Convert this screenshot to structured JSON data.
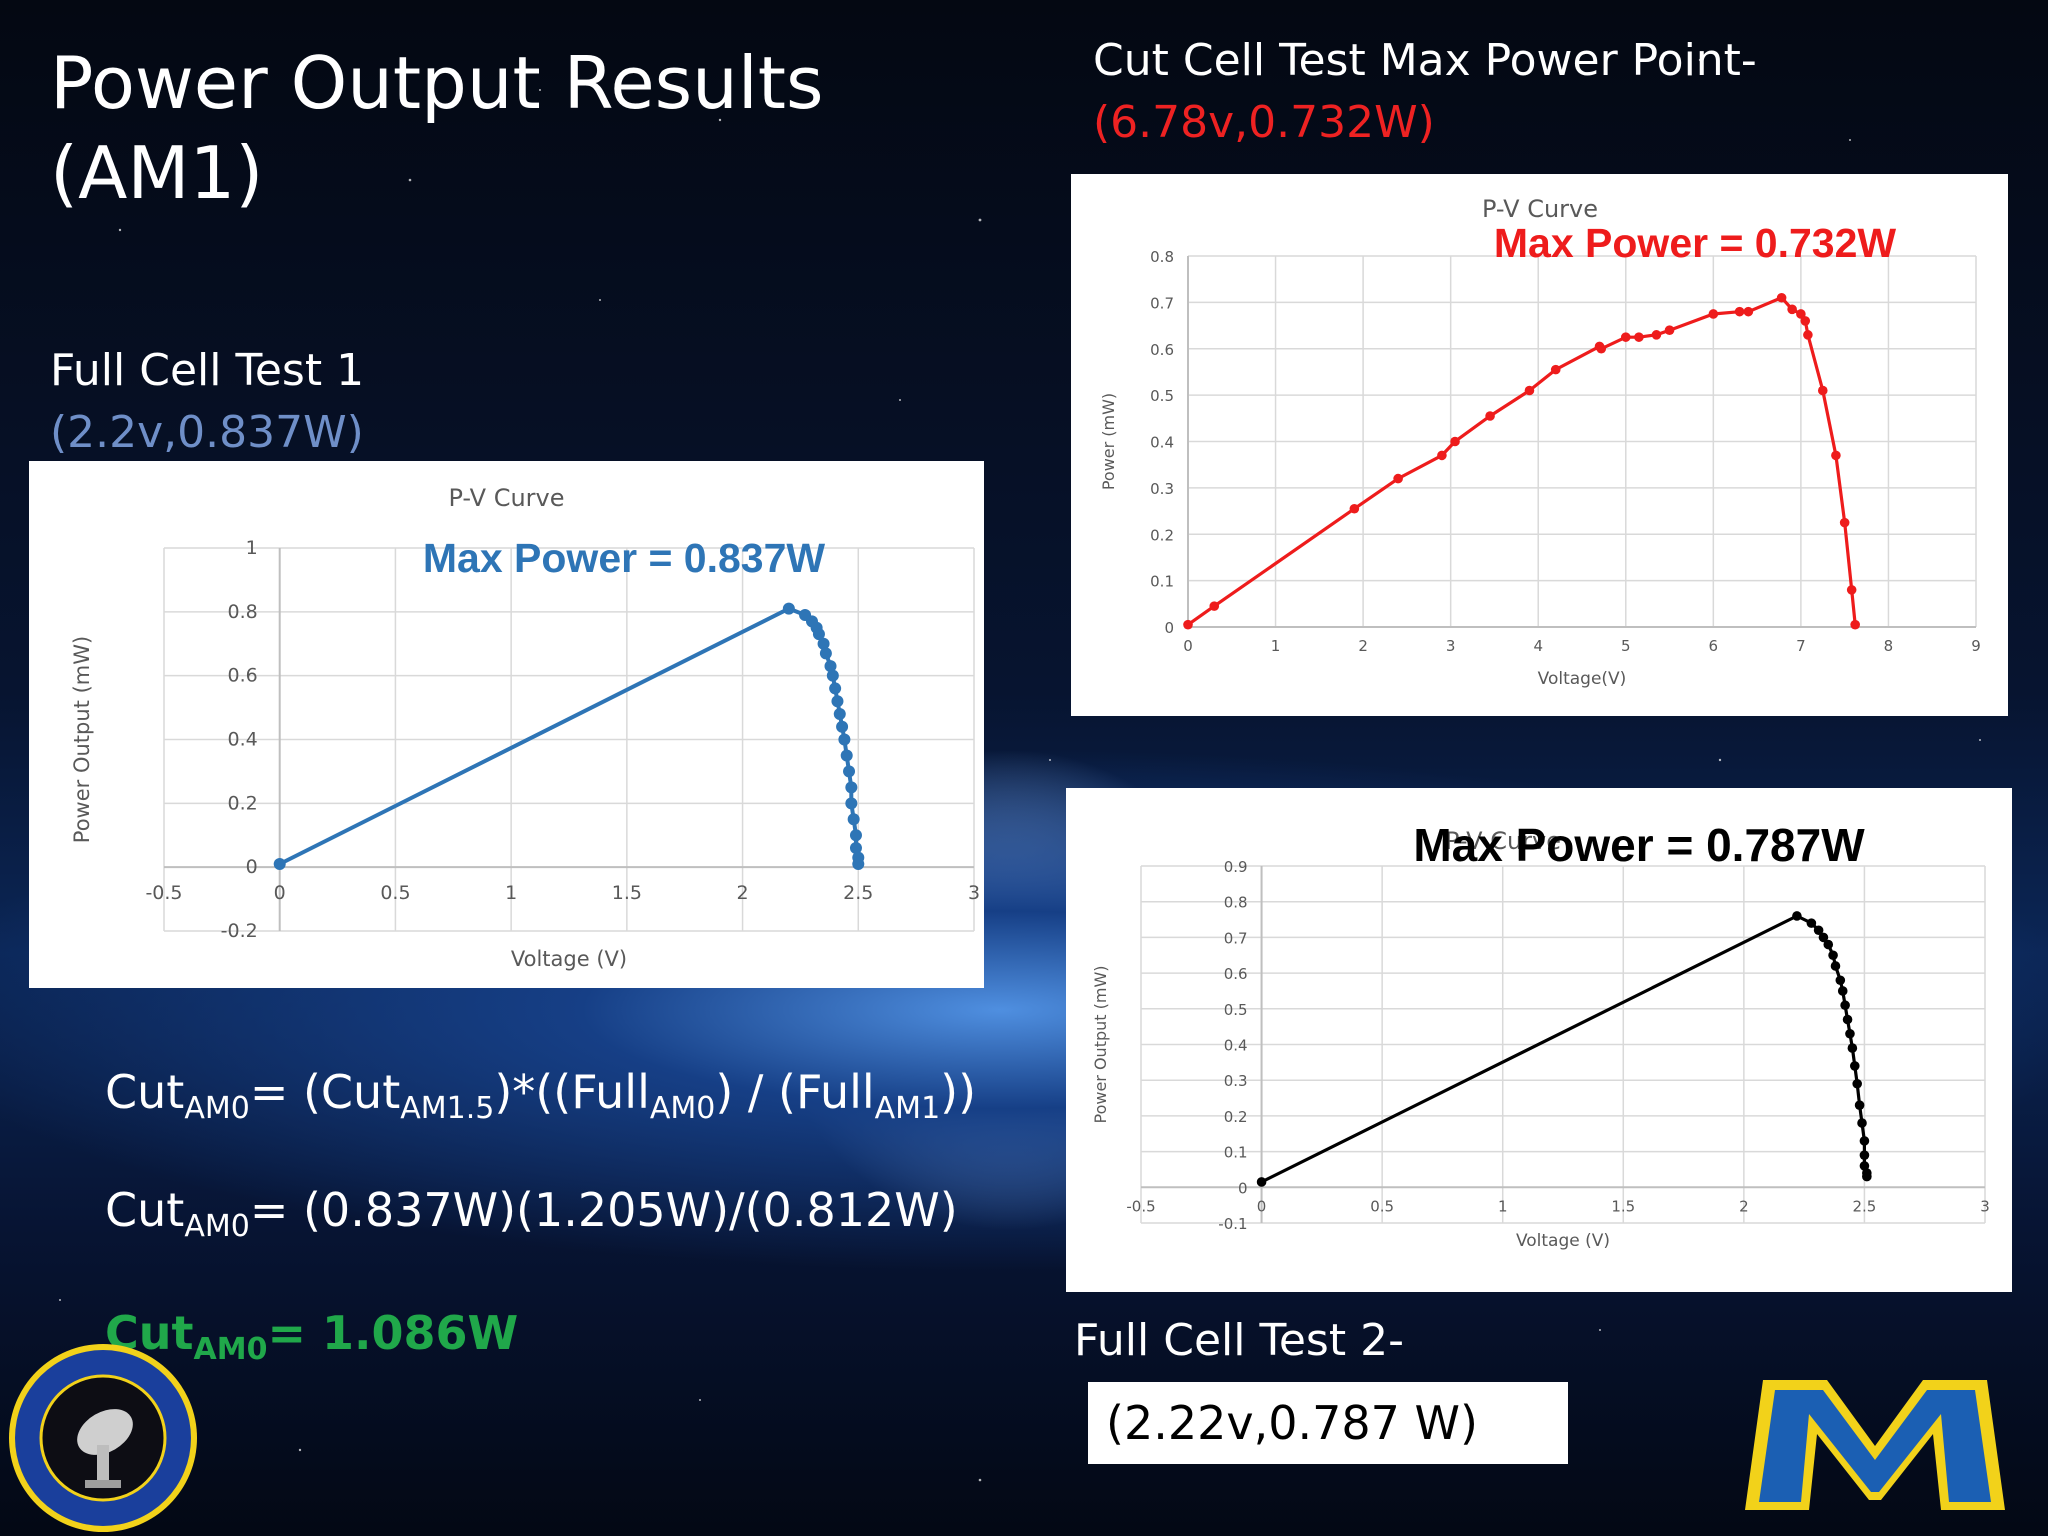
{
  "slide": {
    "title_line1": "Power Output Results",
    "title_line2": "(AM1)",
    "full1_label": "Full Cell Test 1",
    "full1_point": "(2.2v,0.837W)",
    "cut_label": "Cut Cell Test Max Power Point-",
    "cut_point": "(6.78v,0.732W)",
    "full2_label": "Full Cell Test 2-",
    "full2_point": "(2.22v,0.787 W)"
  },
  "colors": {
    "full1": "#2e75b6",
    "cut": "#ee1c1c",
    "full2": "#000000",
    "result": "#20a84a",
    "point1_text": "#6f8fc8",
    "point_cut_text": "#ee2222"
  },
  "formulas": {
    "line1": {
      "a": "Cut",
      "a_sub": "AM0",
      "b": "= (Cut",
      "b_sub": "AM1.5",
      "c": ")*((Full",
      "c_sub": "AM0",
      "d": ") / (Full",
      "d_sub": "AM1",
      "e": "))"
    },
    "line2": {
      "a": "Cut",
      "a_sub": "AM0",
      "b": "= (0.837W)(1.205W)/(0.812W)"
    },
    "line3": {
      "a": "Cut",
      "a_sub": "AM0",
      "b": "= 1.086W"
    }
  },
  "logos": {
    "left": "Space Science Center - Morehead State University seal",
    "right": "Morehead State M logo"
  },
  "chart_data": [
    {
      "type": "scatter",
      "id": "full-cell-test-1",
      "title": "P-V Curve",
      "annotation": "Max Power = 0.837W",
      "xlabel": "Voltage (V)",
      "ylabel": "Power Output  (mW)",
      "xlim": [
        -0.5,
        3
      ],
      "ylim": [
        -0.2,
        1
      ],
      "xticks": [
        "-0.5",
        "0",
        "0.5",
        "1",
        "1.5",
        "2",
        "2.5",
        "3"
      ],
      "yticks": [
        "-0.2",
        "0",
        "0.2",
        "0.4",
        "0.6",
        "0.8",
        "1"
      ],
      "grid": true,
      "series": [
        {
          "color": "#2e75b6",
          "points": [
            [
              0,
              0.01
            ],
            [
              2.2,
              0.81
            ],
            [
              2.27,
              0.79
            ],
            [
              2.3,
              0.77
            ],
            [
              2.32,
              0.75
            ],
            [
              2.33,
              0.73
            ],
            [
              2.35,
              0.7
            ],
            [
              2.36,
              0.67
            ],
            [
              2.38,
              0.63
            ],
            [
              2.39,
              0.6
            ],
            [
              2.4,
              0.56
            ],
            [
              2.41,
              0.52
            ],
            [
              2.42,
              0.48
            ],
            [
              2.43,
              0.44
            ],
            [
              2.44,
              0.4
            ],
            [
              2.45,
              0.35
            ],
            [
              2.46,
              0.3
            ],
            [
              2.47,
              0.25
            ],
            [
              2.47,
              0.2
            ],
            [
              2.48,
              0.15
            ],
            [
              2.49,
              0.1
            ],
            [
              2.49,
              0.06
            ],
            [
              2.5,
              0.03
            ],
            [
              2.5,
              0.01
            ]
          ]
        }
      ]
    },
    {
      "type": "scatter",
      "id": "cut-cell-test",
      "title": "P-V Curve",
      "annotation": "Max Power =  0.732W",
      "xlabel": "Voltage(V)",
      "ylabel": "Power (mW)",
      "xlim": [
        0,
        9
      ],
      "ylim": [
        0,
        0.8
      ],
      "xticks": [
        "0",
        "1",
        "2",
        "3",
        "4",
        "5",
        "6",
        "7",
        "8",
        "9"
      ],
      "yticks": [
        "0",
        "0.1",
        "0.2",
        "0.3",
        "0.4",
        "0.5",
        "0.6",
        "0.7",
        "0.8"
      ],
      "grid": true,
      "series": [
        {
          "color": "#ee1c1c",
          "points": [
            [
              0,
              0.005
            ],
            [
              0.3,
              0.045
            ],
            [
              1.9,
              0.255
            ],
            [
              2.4,
              0.32
            ],
            [
              2.9,
              0.37
            ],
            [
              3.05,
              0.4
            ],
            [
              3.45,
              0.455
            ],
            [
              3.9,
              0.51
            ],
            [
              4.2,
              0.555
            ],
            [
              4.7,
              0.605
            ],
            [
              4.72,
              0.6
            ],
            [
              5.0,
              0.625
            ],
            [
              5.15,
              0.625
            ],
            [
              5.35,
              0.63
            ],
            [
              5.5,
              0.64
            ],
            [
              6.0,
              0.675
            ],
            [
              6.3,
              0.68
            ],
            [
              6.4,
              0.68
            ],
            [
              6.78,
              0.71
            ],
            [
              6.9,
              0.685
            ],
            [
              7.0,
              0.675
            ],
            [
              7.05,
              0.66
            ],
            [
              7.08,
              0.63
            ],
            [
              7.25,
              0.51
            ],
            [
              7.4,
              0.37
            ],
            [
              7.5,
              0.225
            ],
            [
              7.58,
              0.08
            ],
            [
              7.62,
              0.005
            ]
          ]
        }
      ]
    },
    {
      "type": "scatter",
      "id": "full-cell-test-2",
      "title": "P-V Curve",
      "annotation": "Max Power = 0.787W",
      "xlabel": "Voltage (V)",
      "ylabel": "Power Output  (mW)",
      "xlim": [
        -0.5,
        3
      ],
      "ylim": [
        -0.1,
        0.9
      ],
      "xticks": [
        "-0.5",
        "0",
        "0.5",
        "1",
        "1.5",
        "2",
        "2.5",
        "3"
      ],
      "yticks": [
        "-0.1",
        "0",
        "0.1",
        "0.2",
        "0.3",
        "0.4",
        "0.5",
        "0.6",
        "0.7",
        "0.8",
        "0.9"
      ],
      "grid": true,
      "series": [
        {
          "color": "#000000",
          "points": [
            [
              0,
              0.015
            ],
            [
              2.22,
              0.76
            ],
            [
              2.28,
              0.74
            ],
            [
              2.31,
              0.72
            ],
            [
              2.33,
              0.7
            ],
            [
              2.35,
              0.68
            ],
            [
              2.37,
              0.65
            ],
            [
              2.38,
              0.62
            ],
            [
              2.4,
              0.58
            ],
            [
              2.41,
              0.55
            ],
            [
              2.42,
              0.51
            ],
            [
              2.43,
              0.47
            ],
            [
              2.44,
              0.43
            ],
            [
              2.45,
              0.39
            ],
            [
              2.46,
              0.34
            ],
            [
              2.47,
              0.29
            ],
            [
              2.48,
              0.23
            ],
            [
              2.49,
              0.18
            ],
            [
              2.5,
              0.13
            ],
            [
              2.5,
              0.09
            ],
            [
              2.5,
              0.06
            ],
            [
              2.51,
              0.04
            ],
            [
              2.51,
              0.03
            ]
          ]
        }
      ]
    }
  ]
}
